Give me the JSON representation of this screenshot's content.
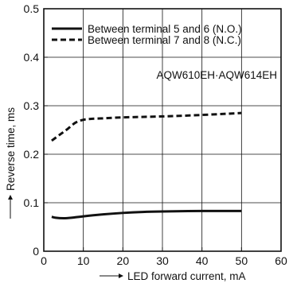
{
  "chart_data": {
    "type": "line",
    "title": "",
    "annotation": "AQW610EH·AQW614EH",
    "xlabel": "LED forward current, mA",
    "ylabel": "Reverse time, ms",
    "xlim": [
      0,
      60
    ],
    "ylim": [
      0,
      0.5
    ],
    "xticks": [
      0,
      10,
      20,
      30,
      40,
      50,
      60
    ],
    "yticks": [
      0,
      0.1,
      0.2,
      0.3,
      0.4,
      0.5
    ],
    "xtick_labels": [
      "0",
      "10",
      "20",
      "30",
      "40",
      "50",
      "60"
    ],
    "ytick_labels": [
      "0",
      "0.1",
      "0.2",
      "0.3",
      "0.4",
      "0.5"
    ],
    "grid": true,
    "legend_position": "top-left",
    "series": [
      {
        "name": "Between terminal 5 and 6 (N.O.)",
        "style": "solid",
        "color": "#111111",
        "x": [
          2,
          3,
          5,
          7,
          10,
          15,
          20,
          25,
          30,
          40,
          50
        ],
        "y": [
          0.071,
          0.069,
          0.068,
          0.069,
          0.072,
          0.076,
          0.079,
          0.081,
          0.082,
          0.083,
          0.083
        ]
      },
      {
        "name": "Between terminal 7 and 8 (N.C.)",
        "style": "dashed",
        "color": "#111111",
        "x": [
          2,
          4,
          6,
          8,
          10,
          12,
          15,
          20,
          30,
          40,
          50
        ],
        "y": [
          0.228,
          0.24,
          0.252,
          0.265,
          0.271,
          0.273,
          0.274,
          0.276,
          0.278,
          0.281,
          0.285
        ]
      }
    ]
  }
}
